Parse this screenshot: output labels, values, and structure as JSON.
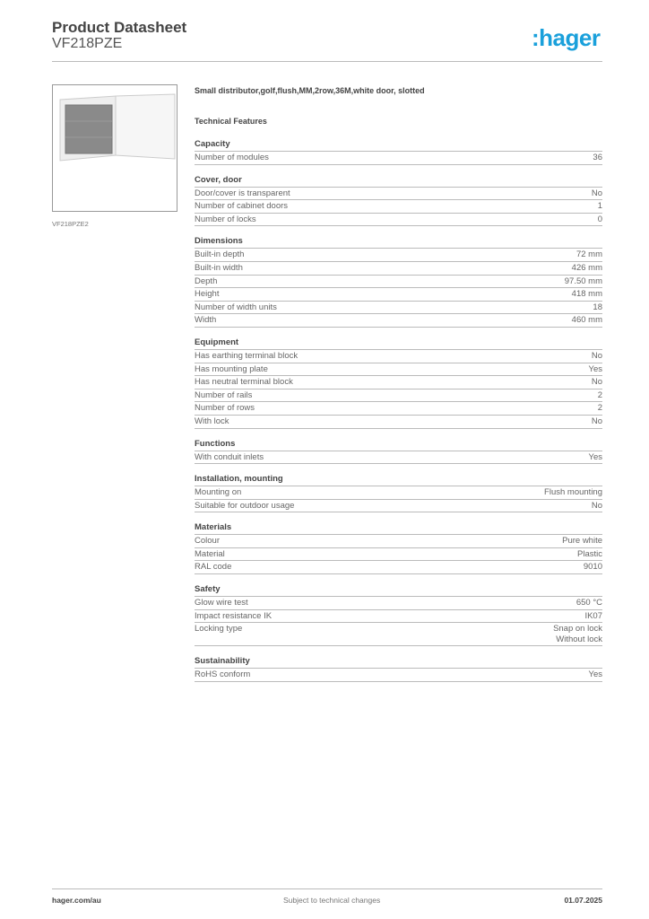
{
  "header": {
    "title": "Product Datasheet",
    "subtitle": "VF218PZE",
    "logo": ":hager",
    "brand_color": "#1aa0db"
  },
  "image": {
    "caption": "VF218PZE2"
  },
  "description": "Small distributor,golf,flush,MM,2row,36M,white door, slotted",
  "features_title": "Technical Features",
  "sections": [
    {
      "title": "Capacity",
      "rows": [
        [
          "Number of modules",
          "36"
        ]
      ]
    },
    {
      "title": "Cover, door",
      "rows": [
        [
          "Door/cover is transparent",
          "No"
        ],
        [
          "Number of cabinet doors",
          "1"
        ],
        [
          "Number of locks",
          "0"
        ]
      ]
    },
    {
      "title": "Dimensions",
      "rows": [
        [
          "Built-in depth",
          "72 mm"
        ],
        [
          "Built-in width",
          "426 mm"
        ],
        [
          "Depth",
          "97.50 mm"
        ],
        [
          "Height",
          "418 mm"
        ],
        [
          "Number of width units",
          "18"
        ],
        [
          "Width",
          "460 mm"
        ]
      ]
    },
    {
      "title": "Equipment",
      "rows": [
        [
          "Has earthing terminal block",
          "No"
        ],
        [
          "Has mounting plate",
          "Yes"
        ],
        [
          "Has neutral terminal block",
          "No"
        ],
        [
          "Number of rails",
          "2"
        ],
        [
          "Number of rows",
          "2"
        ],
        [
          "With lock",
          "No"
        ]
      ]
    },
    {
      "title": "Functions",
      "rows": [
        [
          "With conduit inlets",
          "Yes"
        ]
      ]
    },
    {
      "title": "Installation, mounting",
      "rows": [
        [
          "Mounting on",
          "Flush mounting"
        ],
        [
          "Suitable for outdoor usage",
          "No"
        ]
      ]
    },
    {
      "title": "Materials",
      "rows": [
        [
          "Colour",
          "Pure white"
        ],
        [
          "Material",
          "Plastic"
        ],
        [
          "RAL code",
          "9010"
        ]
      ]
    },
    {
      "title": "Safety",
      "rows": [
        [
          "Glow wire test",
          "650 °C"
        ],
        [
          "Impact resistance IK",
          "IK07"
        ],
        [
          "Locking type",
          "Snap on lock\nWithout lock"
        ]
      ]
    },
    {
      "title": "Sustainability",
      "rows": [
        [
          "RoHS conform",
          "Yes"
        ]
      ]
    }
  ],
  "footer": {
    "left": "hager.com/au",
    "middle": "Subject to technical changes",
    "right": "01.07.2025"
  }
}
